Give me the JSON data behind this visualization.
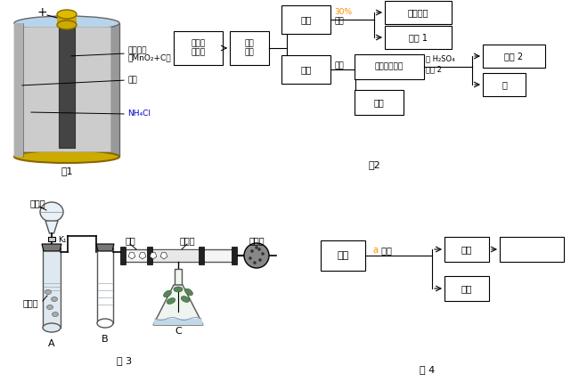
{
  "orange_color": "#FF8C00",
  "blue_color": "#0000CC",
  "black_color": "#000000",
  "background": "#ffffff",
  "fig1_label": "图1",
  "fig2_label": "图2",
  "fig3_label": "图 3",
  "fig4_label": "图 4"
}
